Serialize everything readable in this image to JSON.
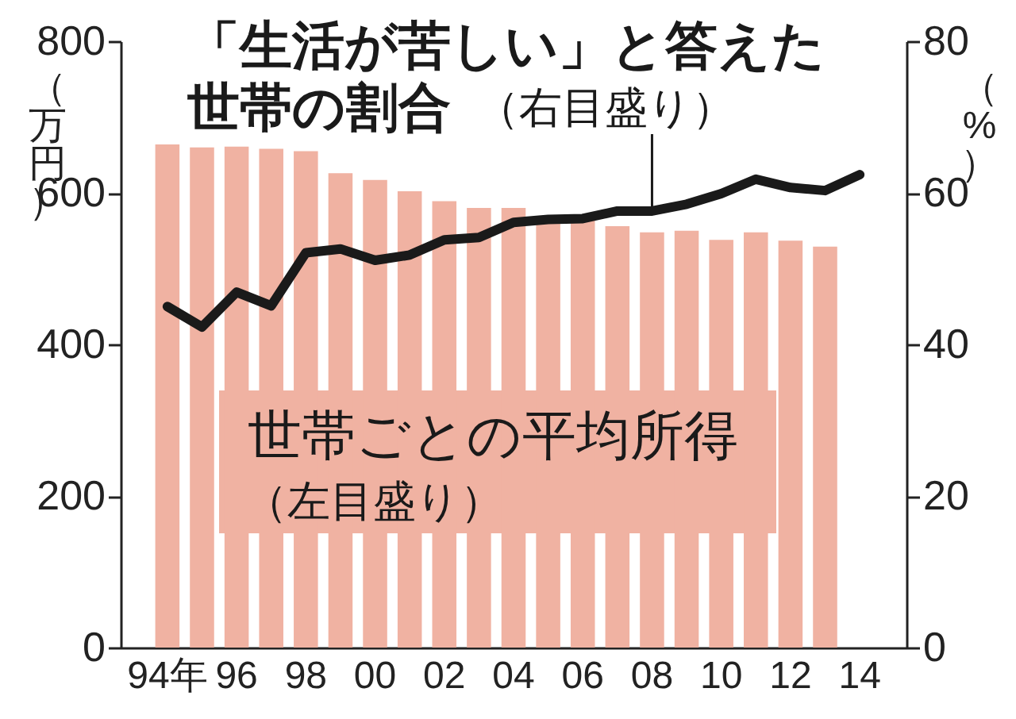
{
  "chart_data": {
    "type": "bar",
    "categories": [
      "94年",
      null,
      "96",
      null,
      "98",
      null,
      "00",
      null,
      "02",
      null,
      "04",
      null,
      "06",
      null,
      "08",
      null,
      "10",
      null,
      "12",
      null,
      "14"
    ],
    "ylabel": "（万円）",
    "y2label": "（%）",
    "ylim": [
      0,
      800
    ],
    "yticks": [
      0,
      200,
      400,
      600,
      800
    ],
    "y2lim": [
      0,
      80
    ],
    "y2ticks": [
      0,
      20,
      40,
      60,
      80
    ],
    "series": [
      {
        "color": "#f0b2a2",
        "values": [
          664,
          660,
          661,
          658,
          655,
          626,
          617,
          602,
          589,
          580,
          580,
          564,
          567,
          556,
          548,
          550,
          538,
          548,
          537,
          529,
          null
        ]
      },
      {
        "type": "line",
        "axis": "y2",
        "color": "#1a1a1a",
        "values": [
          45.0,
          42.3,
          46.9,
          45.1,
          52.1,
          52.6,
          51.1,
          51.8,
          53.8,
          54.1,
          56.1,
          56.5,
          56.6,
          57.6,
          57.6,
          58.5,
          59.9,
          61.8,
          60.7,
          60.3,
          62.4
        ]
      }
    ],
    "annotations": [
      {
        "text": "「生活が苦しい」と答えた",
        "x": "08",
        "y": 576
      },
      "世帯の割合",
      "（右目盛り）",
      "世帯ごとの平均所得",
      "（左目盛り）"
    ],
    "grid": false
  }
}
